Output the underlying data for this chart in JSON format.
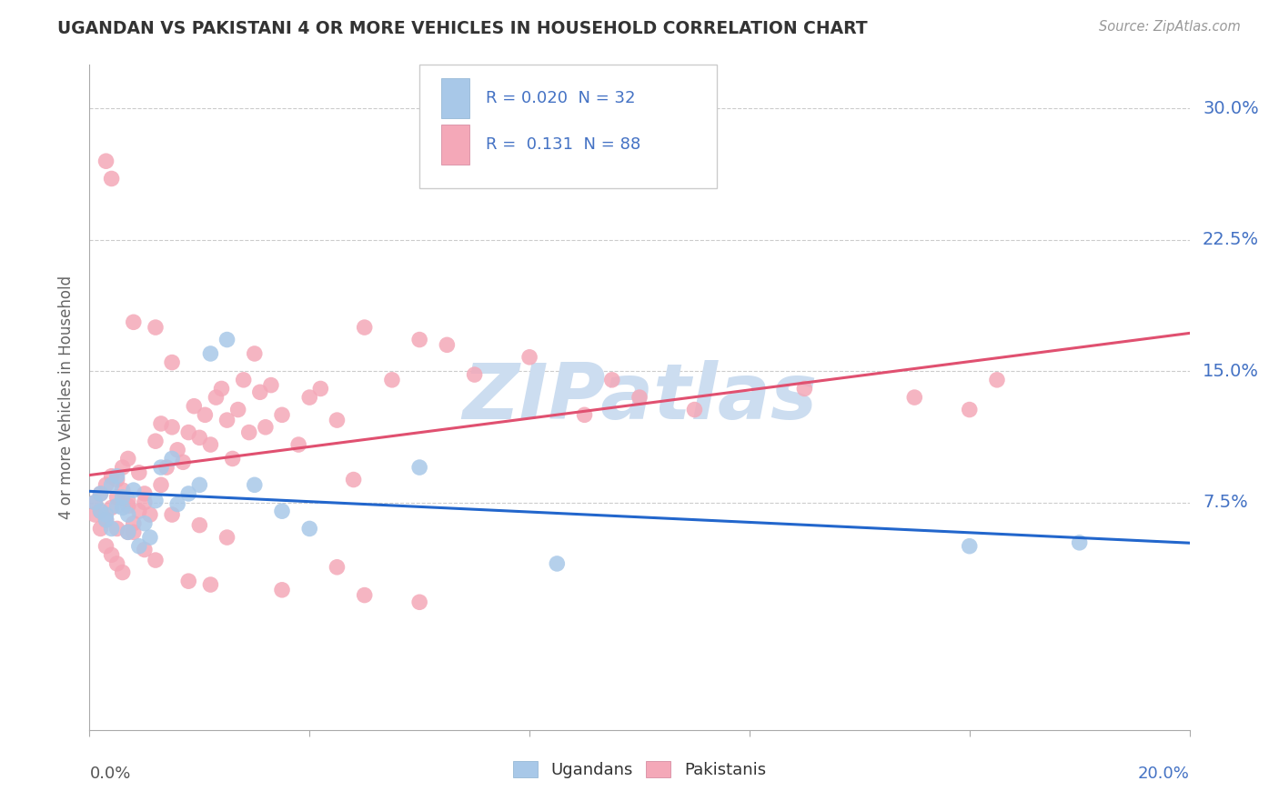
{
  "title": "UGANDAN VS PAKISTANI 4 OR MORE VEHICLES IN HOUSEHOLD CORRELATION CHART",
  "source": "Source: ZipAtlas.com",
  "ylabel": "4 or more Vehicles in Household",
  "ugandan_color": "#a8c8e8",
  "pakistani_color": "#f4a8b8",
  "ugandan_line_color": "#2266cc",
  "pakistani_line_color": "#e05070",
  "label_color": "#4472c4",
  "title_color": "#333333",
  "source_color": "#999999",
  "grid_color": "#cccccc",
  "watermark_color": "#ccddf0",
  "xlim": [
    0.0,
    0.2
  ],
  "ylim": [
    -0.055,
    0.325
  ],
  "yticks": [
    0.075,
    0.15,
    0.225,
    0.3
  ],
  "ytick_labels": [
    "7.5%",
    "15.0%",
    "22.5%",
    "30.0%"
  ],
  "ug_R": "0.020",
  "ug_N": "32",
  "pk_R": "0.131",
  "pk_N": "88",
  "ug_x": [
    0.001,
    0.002,
    0.002,
    0.003,
    0.003,
    0.004,
    0.004,
    0.005,
    0.005,
    0.006,
    0.006,
    0.007,
    0.007,
    0.008,
    0.009,
    0.01,
    0.011,
    0.012,
    0.013,
    0.015,
    0.016,
    0.018,
    0.02,
    0.022,
    0.025,
    0.03,
    0.035,
    0.04,
    0.06,
    0.085,
    0.16,
    0.18
  ],
  "ug_y": [
    0.075,
    0.08,
    0.07,
    0.068,
    0.065,
    0.085,
    0.06,
    0.09,
    0.073,
    0.072,
    0.078,
    0.058,
    0.068,
    0.082,
    0.05,
    0.063,
    0.055,
    0.076,
    0.095,
    0.1,
    0.074,
    0.08,
    0.085,
    0.16,
    0.168,
    0.085,
    0.07,
    0.06,
    0.095,
    0.04,
    0.05,
    0.052
  ],
  "pk_x": [
    0.001,
    0.001,
    0.002,
    0.002,
    0.002,
    0.003,
    0.003,
    0.003,
    0.004,
    0.004,
    0.004,
    0.005,
    0.005,
    0.005,
    0.006,
    0.006,
    0.007,
    0.007,
    0.007,
    0.008,
    0.008,
    0.008,
    0.009,
    0.009,
    0.01,
    0.01,
    0.011,
    0.012,
    0.012,
    0.013,
    0.013,
    0.014,
    0.015,
    0.015,
    0.016,
    0.017,
    0.018,
    0.019,
    0.02,
    0.021,
    0.022,
    0.023,
    0.024,
    0.025,
    0.026,
    0.027,
    0.028,
    0.029,
    0.03,
    0.031,
    0.032,
    0.033,
    0.035,
    0.038,
    0.04,
    0.042,
    0.045,
    0.048,
    0.05,
    0.055,
    0.06,
    0.065,
    0.07,
    0.08,
    0.09,
    0.095,
    0.1,
    0.11,
    0.13,
    0.15,
    0.16,
    0.165,
    0.003,
    0.004,
    0.005,
    0.006,
    0.007,
    0.01,
    0.012,
    0.015,
    0.018,
    0.02,
    0.022,
    0.025,
    0.035,
    0.045,
    0.05,
    0.06
  ],
  "pk_y": [
    0.075,
    0.068,
    0.08,
    0.07,
    0.06,
    0.085,
    0.065,
    0.27,
    0.09,
    0.072,
    0.26,
    0.06,
    0.088,
    0.078,
    0.082,
    0.095,
    0.076,
    0.1,
    0.073,
    0.063,
    0.058,
    0.178,
    0.07,
    0.092,
    0.08,
    0.075,
    0.068,
    0.11,
    0.175,
    0.12,
    0.085,
    0.095,
    0.118,
    0.155,
    0.105,
    0.098,
    0.115,
    0.13,
    0.112,
    0.125,
    0.108,
    0.135,
    0.14,
    0.122,
    0.1,
    0.128,
    0.145,
    0.115,
    0.16,
    0.138,
    0.118,
    0.142,
    0.125,
    0.108,
    0.135,
    0.14,
    0.122,
    0.088,
    0.175,
    0.145,
    0.168,
    0.165,
    0.148,
    0.158,
    0.125,
    0.145,
    0.135,
    0.128,
    0.14,
    0.135,
    0.128,
    0.145,
    0.05,
    0.045,
    0.04,
    0.035,
    0.058,
    0.048,
    0.042,
    0.068,
    0.03,
    0.062,
    0.028,
    0.055,
    0.025,
    0.038,
    0.022,
    0.018
  ]
}
